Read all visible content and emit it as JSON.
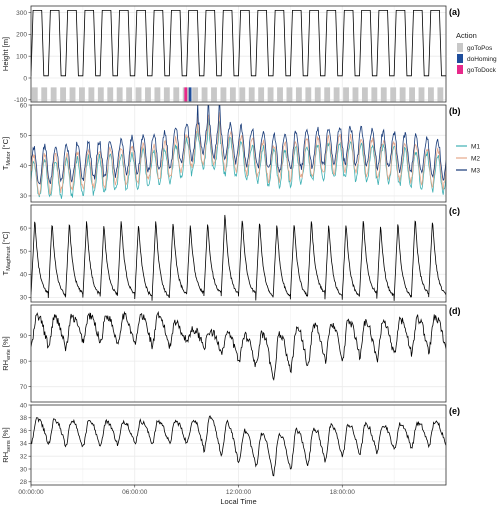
{
  "chart_data": [
    {
      "id": "a",
      "panel_label": "(a)",
      "type": "line",
      "ylabel": "Height [m]",
      "ylim": [
        -110,
        330
      ],
      "yticks": [
        -100,
        0,
        100,
        200,
        300
      ],
      "cycles": 24,
      "min_height": 10,
      "max_height": 310,
      "legend": {
        "title": "Action",
        "entries": [
          {
            "name": "goToPos",
            "color": "#c8c8c8"
          },
          {
            "name": "doHoming",
            "color": "#1f4e9c"
          },
          {
            "name": "goToDock",
            "color": "#e7298a"
          }
        ]
      },
      "action_bar": {
        "y": -75,
        "events": [
          {
            "action": "goToDock",
            "hour": 8.95
          },
          {
            "action": "doHoming",
            "hour": 9.2
          }
        ]
      }
    },
    {
      "id": "b",
      "panel_label": "(b)",
      "type": "line",
      "ylabel_main": "T",
      "ylabel_sub": "Motor",
      "ylabel_unit": " [°C]",
      "ylim": [
        28,
        60
      ],
      "yticks": [
        30,
        40,
        50,
        60
      ],
      "series": [
        {
          "name": "M1",
          "color": "#3fb0b3"
        },
        {
          "name": "M2",
          "color": "#e6a88a"
        },
        {
          "name": "M3",
          "color": "#173a78"
        }
      ],
      "base_profile": {
        "hours": [
          0,
          4,
          8,
          10,
          12,
          14,
          18,
          22,
          24
        ],
        "levels": [
          38,
          40,
          43,
          48,
          45,
          42,
          45,
          42,
          40
        ]
      }
    },
    {
      "id": "c",
      "panel_label": "(c)",
      "type": "line",
      "ylabel_main": "T",
      "ylabel_sub": "Magthrust",
      "ylabel_unit": " [°C]",
      "ylim": [
        28,
        70
      ],
      "yticks": [
        30,
        40,
        50,
        60
      ],
      "series": [
        {
          "name": "T_Magthrust",
          "color": "#000000"
        }
      ],
      "cycle_minimum": 30,
      "cycle_peaks": [
        64,
        63,
        63,
        64,
        62,
        64,
        63,
        64,
        63,
        62,
        63,
        67,
        65,
        64,
        62,
        63,
        64,
        62,
        63,
        64,
        62,
        63,
        65,
        64
      ]
    },
    {
      "id": "d",
      "panel_label": "(d)",
      "type": "line",
      "ylabel_main": "RH",
      "ylabel_sub": "ente",
      "ylabel_unit": " [%]",
      "ylim": [
        64,
        102
      ],
      "yticks": [
        70,
        80,
        90
      ],
      "series": [
        {
          "name": "RH_ente",
          "color": "#000000"
        }
      ],
      "profile": {
        "hours": [
          0,
          2,
          3,
          5,
          7,
          8,
          9,
          10,
          11,
          12,
          13,
          14,
          15,
          16,
          17,
          18,
          19,
          20,
          21,
          22,
          23,
          24
        ],
        "baseline": [
          86,
          85,
          88,
          87,
          86,
          86,
          88,
          86,
          84,
          80,
          78,
          72,
          76,
          78,
          80,
          80,
          82,
          80,
          82,
          83,
          84,
          85
        ],
        "peaks": [
          98,
          97,
          98,
          98,
          98,
          97,
          93,
          92,
          91,
          90,
          91,
          90,
          92,
          94,
          95,
          96,
          96,
          95,
          96,
          97,
          97,
          98
        ]
      }
    },
    {
      "id": "e",
      "panel_label": "(e)",
      "type": "line",
      "ylabel_main": "RH",
      "ylabel_sub": "sens",
      "ylabel_unit": " [%]",
      "ylim": [
        27.5,
        40
      ],
      "yticks": [
        28,
        30,
        32,
        34,
        36,
        38,
        40
      ],
      "series": [
        {
          "name": "RH_sens",
          "color": "#000000"
        }
      ],
      "profile": {
        "hours": [
          0,
          3,
          6,
          9,
          10,
          11,
          12,
          13,
          14,
          15,
          18,
          21,
          24
        ],
        "baseline": [
          34,
          33.5,
          34,
          34,
          33,
          32,
          31,
          30.5,
          29,
          30,
          32,
          33,
          34
        ],
        "peaks": [
          38,
          37.5,
          37.5,
          37.5,
          38,
          38,
          36,
          36,
          35,
          36,
          37,
          37,
          37.5
        ]
      }
    }
  ],
  "x_axis": {
    "label": "Local Time",
    "xlim": [
      0,
      24
    ],
    "tick_hours": [
      0,
      6,
      12,
      18
    ],
    "tick_labels": [
      "00:00:00",
      "06:00:00",
      "12:00:00",
      "18:00:00"
    ]
  },
  "colors": {
    "panel_border": "#333333",
    "grid": "#ebebeb",
    "line_black": "#000000"
  }
}
